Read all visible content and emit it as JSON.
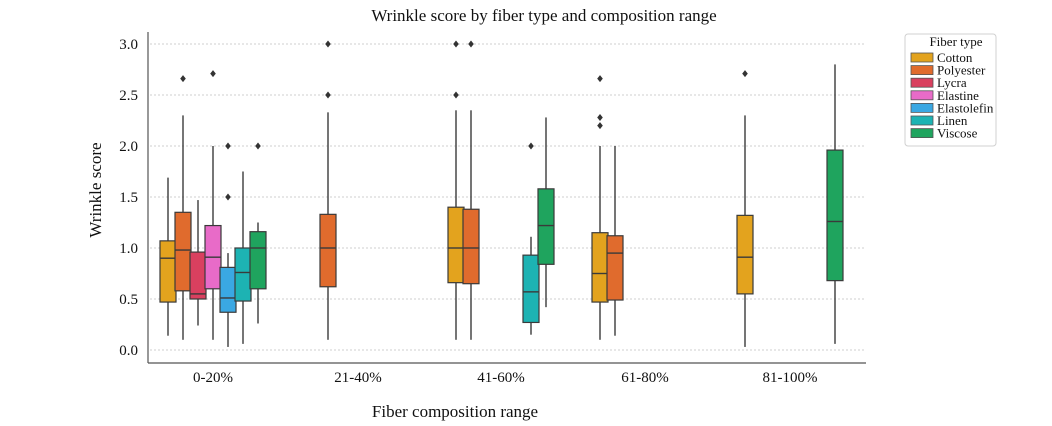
{
  "chart_data": {
    "type": "box",
    "title": "Wrinkle score by fiber type and composition range",
    "xlabel": "Fiber composition range",
    "ylabel": "Wrinkle score",
    "ylim": [
      -0.1,
      3.1
    ],
    "yticks": [
      "0.0",
      "0.5",
      "1.0",
      "1.5",
      "2.0",
      "2.5",
      "3.0"
    ],
    "grid": true,
    "categories": [
      "0-20%",
      "21-40%",
      "41-60%",
      "61-80%",
      "81-100%"
    ],
    "legend": {
      "title": "Fiber type",
      "placement": "top-right outside"
    },
    "series": [
      {
        "name": "Cotton",
        "color": "#E3A31E",
        "boxes": [
          {
            "category": "0-20%",
            "whislo": 0.14,
            "q1": 0.47,
            "med": 0.9,
            "q3": 1.07,
            "whishi": 1.69,
            "fliers": []
          },
          {
            "category": "41-60%",
            "whislo": 0.1,
            "q1": 0.66,
            "med": 1.0,
            "q3": 1.4,
            "whishi": 2.35,
            "fliers": [
              2.5,
              3.0
            ]
          },
          {
            "category": "61-80%",
            "whislo": 0.1,
            "q1": 0.47,
            "med": 0.75,
            "q3": 1.15,
            "whishi": 2.0,
            "fliers": [
              2.2,
              2.28,
              2.66
            ]
          },
          {
            "category": "81-100%",
            "whislo": 0.03,
            "q1": 0.55,
            "med": 0.91,
            "q3": 1.32,
            "whishi": 2.3,
            "fliers": [
              2.71
            ]
          }
        ]
      },
      {
        "name": "Polyester",
        "color": "#E06B2D",
        "boxes": [
          {
            "category": "0-20%",
            "whislo": 0.1,
            "q1": 0.58,
            "med": 0.98,
            "q3": 1.35,
            "whishi": 2.3,
            "fliers": [
              2.66
            ]
          },
          {
            "category": "21-40%",
            "whislo": 0.1,
            "q1": 0.62,
            "med": 1.0,
            "q3": 1.33,
            "whishi": 2.33,
            "fliers": [
              2.5,
              3.0
            ]
          },
          {
            "category": "41-60%",
            "whislo": 0.1,
            "q1": 0.65,
            "med": 1.0,
            "q3": 1.38,
            "whishi": 2.35,
            "fliers": [
              3.0
            ]
          },
          {
            "category": "61-80%",
            "whislo": 0.14,
            "q1": 0.49,
            "med": 0.95,
            "q3": 1.12,
            "whishi": 2.0,
            "fliers": []
          }
        ]
      },
      {
        "name": "Lycra",
        "color": "#D9405F",
        "boxes": [
          {
            "category": "0-20%",
            "whislo": 0.24,
            "q1": 0.5,
            "med": 0.55,
            "q3": 0.96,
            "whishi": 1.47,
            "fliers": []
          }
        ]
      },
      {
        "name": "Elastine",
        "color": "#E86BC8",
        "boxes": [
          {
            "category": "0-20%",
            "whislo": 0.1,
            "q1": 0.6,
            "med": 0.91,
            "q3": 1.22,
            "whishi": 2.0,
            "fliers": [
              2.71
            ]
          }
        ]
      },
      {
        "name": "Elastolefin",
        "color": "#3AA8E3",
        "boxes": [
          {
            "category": "0-20%",
            "whislo": 0.03,
            "q1": 0.37,
            "med": 0.51,
            "q3": 0.81,
            "whishi": 0.95,
            "fliers": [
              1.5,
              2.0
            ]
          }
        ]
      },
      {
        "name": "Linen",
        "color": "#1DB3B3",
        "boxes": [
          {
            "category": "0-20%",
            "whislo": 0.06,
            "q1": 0.48,
            "med": 0.76,
            "q3": 1.0,
            "whishi": 1.75,
            "fliers": []
          },
          {
            "category": "41-60%",
            "whislo": 0.15,
            "q1": 0.27,
            "med": 0.57,
            "q3": 0.93,
            "whishi": 1.11,
            "fliers": [
              2.0
            ]
          }
        ]
      },
      {
        "name": "Viscose",
        "color": "#1FA45E",
        "boxes": [
          {
            "category": "0-20%",
            "whislo": 0.26,
            "q1": 0.6,
            "med": 1.0,
            "q3": 1.16,
            "whishi": 1.25,
            "fliers": [
              2.0
            ]
          },
          {
            "category": "41-60%",
            "whislo": 0.42,
            "q1": 0.84,
            "med": 1.22,
            "q3": 1.58,
            "whishi": 2.28,
            "fliers": []
          },
          {
            "category": "81-100%",
            "whislo": 0.06,
            "q1": 0.68,
            "med": 1.26,
            "q3": 1.96,
            "whishi": 2.8,
            "fliers": []
          }
        ]
      }
    ]
  }
}
